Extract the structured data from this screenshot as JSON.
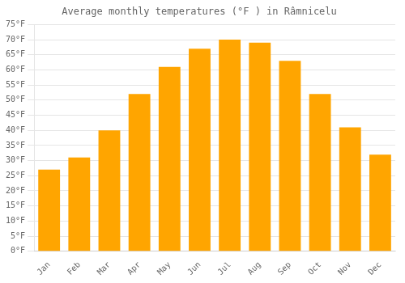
{
  "chart_data": {
    "type": "bar",
    "title": "Average monthly temperatures (°F ) in Râmnicelu",
    "categories": [
      "Jan",
      "Feb",
      "Mar",
      "Apr",
      "May",
      "Jun",
      "Jul",
      "Aug",
      "Sep",
      "Oct",
      "Nov",
      "Dec"
    ],
    "values": [
      27,
      31,
      40,
      52,
      61,
      67,
      70,
      69,
      63,
      52,
      41,
      32
    ],
    "color": "#FFA500",
    "ylim": [
      0,
      75
    ],
    "yticks": [
      {
        "value": 0,
        "label": "0°F"
      },
      {
        "value": 5,
        "label": "5°F"
      },
      {
        "value": 10,
        "label": "10°F"
      },
      {
        "value": 15,
        "label": "15°F"
      },
      {
        "value": 20,
        "label": "20°F"
      },
      {
        "value": 25,
        "label": "25°F"
      },
      {
        "value": 30,
        "label": "30°F"
      },
      {
        "value": 35,
        "label": "35°F"
      },
      {
        "value": 40,
        "label": "40°F"
      },
      {
        "value": 45,
        "label": "45°F"
      },
      {
        "value": 50,
        "label": "50°F"
      },
      {
        "value": 55,
        "label": "55°F"
      },
      {
        "value": 60,
        "label": "60°F"
      },
      {
        "value": 65,
        "label": "65°F"
      },
      {
        "value": 70,
        "label": "70°F"
      },
      {
        "value": 75,
        "label": "75°F"
      }
    ],
    "grid": true
  }
}
